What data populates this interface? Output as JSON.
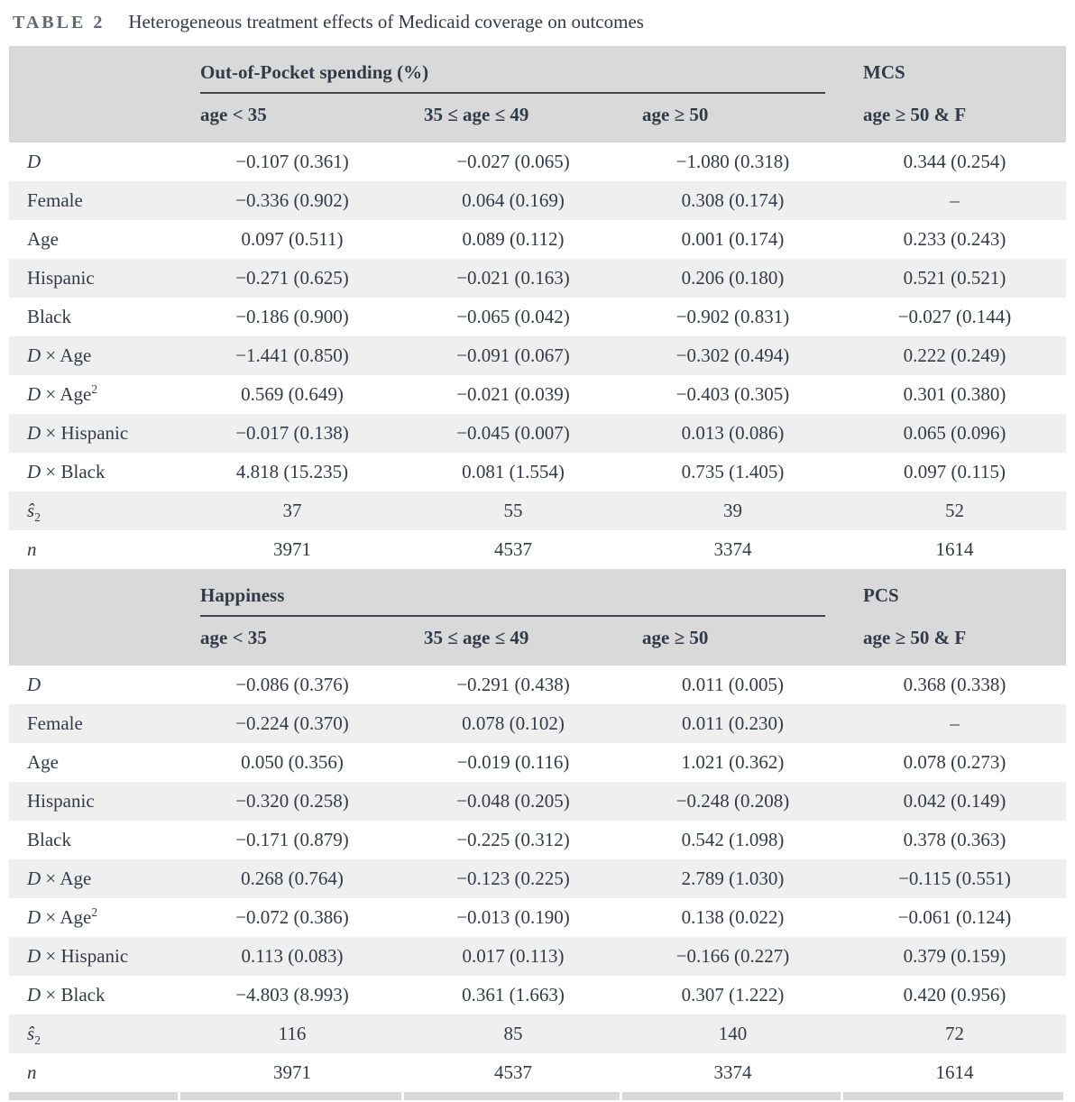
{
  "caption": {
    "label": "TABLE 2",
    "text": "Heterogeneous treatment effects of Medicaid coverage on outcomes"
  },
  "colors": {
    "header_bg": "#d9d9d9",
    "stripe_bg": "#efefef",
    "text": "#333a47",
    "caption_label": "#5f6771",
    "spanner_rule": "#3e4550"
  },
  "panels": [
    {
      "group_header": "Out-of-Pocket spending (%)",
      "single_header": "MCS",
      "subheaders": [
        "age < 35",
        "35 ≤ age ≤ 49",
        "age ≥ 50",
        "age ≥ 50 & F"
      ],
      "rows": [
        {
          "label": {
            "it": "D",
            "sub": "",
            "rm": "",
            "sup": ""
          },
          "values": [
            "−0.107 (0.361)",
            "−0.027 (0.065)",
            "−1.080 (0.318)",
            "0.344 (0.254)"
          ]
        },
        {
          "label": {
            "it": "",
            "sub": "",
            "rm": "Female",
            "sup": ""
          },
          "values": [
            "−0.336 (0.902)",
            "0.064 (0.169)",
            "0.308 (0.174)",
            "–"
          ]
        },
        {
          "label": {
            "it": "",
            "sub": "",
            "rm": "Age",
            "sup": ""
          },
          "values": [
            "0.097 (0.511)",
            "0.089 (0.112)",
            "0.001 (0.174)",
            "0.233 (0.243)"
          ]
        },
        {
          "label": {
            "it": "",
            "sub": "",
            "rm": "Hispanic",
            "sup": ""
          },
          "values": [
            "−0.271 (0.625)",
            "−0.021 (0.163)",
            "0.206 (0.180)",
            "0.521 (0.521)"
          ]
        },
        {
          "label": {
            "it": "",
            "sub": "",
            "rm": "Black",
            "sup": ""
          },
          "values": [
            "−0.186 (0.900)",
            "−0.065 (0.042)",
            "−0.902 (0.831)",
            "−0.027 (0.144)"
          ]
        },
        {
          "label": {
            "it": "D",
            "sub": "",
            "rm": " × Age",
            "sup": ""
          },
          "values": [
            "−1.441 (0.850)",
            "−0.091 (0.067)",
            "−0.302 (0.494)",
            "0.222 (0.249)"
          ]
        },
        {
          "label": {
            "it": "D",
            "sub": "",
            "rm": " × Age",
            "sup": "2"
          },
          "values": [
            "0.569 (0.649)",
            "−0.021 (0.039)",
            "−0.403 (0.305)",
            "0.301 (0.380)"
          ]
        },
        {
          "label": {
            "it": "D",
            "sub": "",
            "rm": " × Hispanic",
            "sup": ""
          },
          "values": [
            "−0.017 (0.138)",
            "−0.045 (0.007)",
            "0.013 (0.086)",
            "0.065 (0.096)"
          ]
        },
        {
          "label": {
            "it": "D",
            "sub": "",
            "rm": " × Black",
            "sup": ""
          },
          "values": [
            "4.818 (15.235)",
            "0.081 (1.554)",
            "0.735 (1.405)",
            "0.097 (0.115)"
          ]
        },
        {
          "label": {
            "it": "ŝ",
            "sub": "2",
            "rm": "",
            "sup": ""
          },
          "values": [
            "37",
            "55",
            "39",
            "52"
          ]
        },
        {
          "label": {
            "it": "n",
            "sub": "",
            "rm": "",
            "sup": ""
          },
          "values": [
            "3971",
            "4537",
            "3374",
            "1614"
          ]
        }
      ]
    },
    {
      "group_header": "Happiness",
      "single_header": "PCS",
      "subheaders": [
        "age < 35",
        "35 ≤ age ≤ 49",
        "age ≥ 50",
        "age ≥ 50 & F"
      ],
      "rows": [
        {
          "label": {
            "it": "D",
            "sub": "",
            "rm": "",
            "sup": ""
          },
          "values": [
            "−0.086 (0.376)",
            "−0.291 (0.438)",
            "0.011 (0.005)",
            "0.368 (0.338)"
          ]
        },
        {
          "label": {
            "it": "",
            "sub": "",
            "rm": "Female",
            "sup": ""
          },
          "values": [
            "−0.224 (0.370)",
            "0.078 (0.102)",
            "0.011 (0.230)",
            "–"
          ]
        },
        {
          "label": {
            "it": "",
            "sub": "",
            "rm": "Age",
            "sup": ""
          },
          "values": [
            "0.050 (0.356)",
            "−0.019 (0.116)",
            "1.021 (0.362)",
            "0.078 (0.273)"
          ]
        },
        {
          "label": {
            "it": "",
            "sub": "",
            "rm": "Hispanic",
            "sup": ""
          },
          "values": [
            "−0.320 (0.258)",
            "−0.048 (0.205)",
            "−0.248 (0.208)",
            "0.042 (0.149)"
          ]
        },
        {
          "label": {
            "it": "",
            "sub": "",
            "rm": "Black",
            "sup": ""
          },
          "values": [
            "−0.171 (0.879)",
            "−0.225 (0.312)",
            "0.542 (1.098)",
            "0.378 (0.363)"
          ]
        },
        {
          "label": {
            "it": "D",
            "sub": "",
            "rm": " × Age",
            "sup": ""
          },
          "values": [
            "0.268 (0.764)",
            "−0.123 (0.225)",
            "2.789 (1.030)",
            "−0.115 (0.551)"
          ]
        },
        {
          "label": {
            "it": "D",
            "sub": "",
            "rm": " × Age",
            "sup": "2"
          },
          "values": [
            "−0.072 (0.386)",
            "−0.013 (0.190)",
            "0.138 (0.022)",
            "−0.061 (0.124)"
          ]
        },
        {
          "label": {
            "it": "D",
            "sub": "",
            "rm": " × Hispanic",
            "sup": ""
          },
          "values": [
            "0.113 (0.083)",
            "0.017 (0.113)",
            "−0.166 (0.227)",
            "0.379 (0.159)"
          ]
        },
        {
          "label": {
            "it": "D",
            "sub": "",
            "rm": " × Black",
            "sup": ""
          },
          "values": [
            "−4.803 (8.993)",
            "0.361 (1.663)",
            "0.307 (1.222)",
            "0.420 (0.956)"
          ]
        },
        {
          "label": {
            "it": "ŝ",
            "sub": "2",
            "rm": "",
            "sup": ""
          },
          "values": [
            "116",
            "85",
            "140",
            "72"
          ]
        },
        {
          "label": {
            "it": "n",
            "sub": "",
            "rm": "",
            "sup": ""
          },
          "values": [
            "3971",
            "4537",
            "3374",
            "1614"
          ]
        }
      ]
    }
  ]
}
